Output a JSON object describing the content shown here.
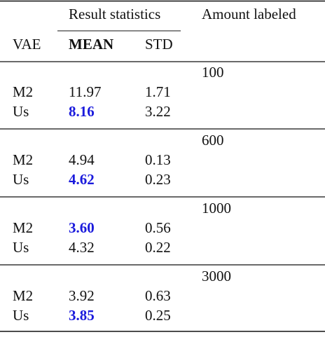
{
  "header": {
    "group_title": "Result statistics",
    "amount_title": "Amount labeled",
    "row_label": "VAE",
    "mean": "MEAN",
    "std": "STD"
  },
  "groups": [
    {
      "amount": "100",
      "rows": [
        {
          "model": "M2",
          "mean": "11.97",
          "std": "1.71"
        },
        {
          "model": "Us",
          "mean": "8.16",
          "std": "3.22"
        }
      ]
    },
    {
      "amount": "600",
      "rows": [
        {
          "model": "M2",
          "mean": "4.94",
          "std": "0.13"
        },
        {
          "model": "Us",
          "mean": "4.62",
          "std": "0.23"
        }
      ]
    },
    {
      "amount": "1000",
      "rows": [
        {
          "model": "M2",
          "mean": "3.60",
          "std": "0.56"
        },
        {
          "model": "Us",
          "mean": "4.32",
          "std": "0.22"
        }
      ]
    },
    {
      "amount": "3000",
      "rows": [
        {
          "model": "M2",
          "mean": "3.92",
          "std": "0.63"
        },
        {
          "model": "Us",
          "mean": "3.85",
          "std": "0.25"
        }
      ]
    }
  ]
}
